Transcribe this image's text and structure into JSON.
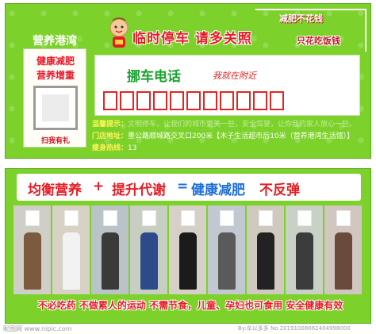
{
  "card1": {
    "left_panel": {
      "title": "营养港湾",
      "line1": "健康减肥",
      "line2": "营养增重",
      "footer": "扫我有礼"
    },
    "banner_title": "临时停车  请多关照",
    "top_right": {
      "line1": "减肥不花钱",
      "line2": "只花吃饭钱"
    },
    "phone_label": "挪车电话",
    "phone_sub": "我就在附近",
    "digit_count": 11,
    "notice_line1_label": "温馨提示：",
    "notice_line1": "文明停车，让我们的城市更美一些，安全驾驶，让你我的家人放心一些。",
    "notice_line2_label": "门店地址：",
    "notice_line2": "墨公路顺城路交叉口200米【木子生活超市后10米（营养港湾生活馆）】",
    "notice_line3_label": "瘦身热线：",
    "notice_line3": "13"
  },
  "card2": {
    "headline": {
      "part1": "均衡营养",
      "plus": "+",
      "part2": "提升代谢",
      "eq": "=",
      "part3": "健康减肥",
      "part4": "不反弹"
    },
    "photo_colors": [
      "#7b5a3e",
      "#f2f2f2",
      "#3a3a3a",
      "#2d4a8a",
      "#1b1b1b",
      "#5a5a5a",
      "#222222",
      "#3c3c3c",
      "#6a4a3a"
    ],
    "footer": "不必吃药  不做累人的运动  不需节食，儿童、孕妇也可食用  安全健康有效"
  },
  "watermark": {
    "left": "昵图网 www.nipic.com",
    "right": "By:牟以多多 No.20191008062404998000"
  },
  "colors": {
    "green_bg": "#7cd22a",
    "red": "#e51b24",
    "blue": "#1e6fd8",
    "phone_green": "#1aa12e"
  }
}
